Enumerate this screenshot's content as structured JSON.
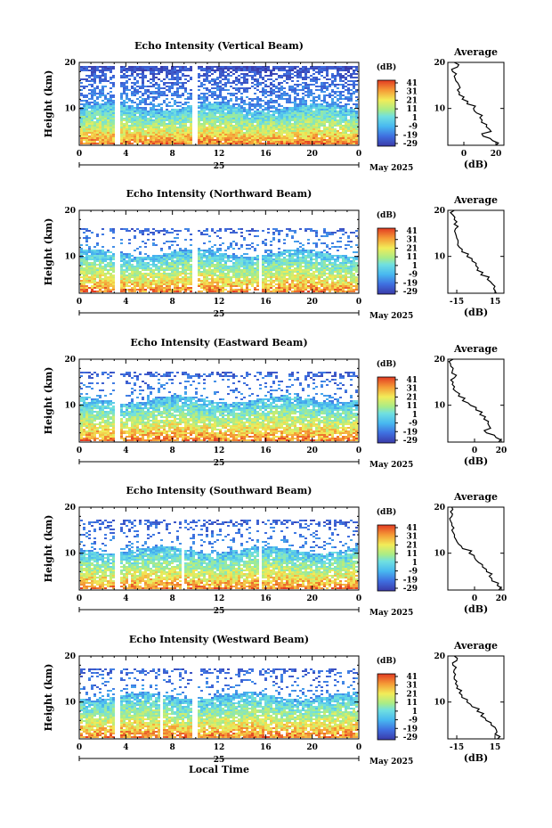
{
  "chart_data": [
    {
      "type": "heatmap",
      "title": "Echo Intensity (Vertical Beam)",
      "ylabel": "Height (km)",
      "xlim": [
        0,
        24
      ],
      "ylim": [
        2,
        20
      ],
      "x_ticks": [
        "0",
        "4",
        "8",
        "12",
        "16",
        "20",
        "0"
      ],
      "y_ticks": [
        "20",
        "10"
      ],
      "day_label": "25",
      "month_label": "May 2025",
      "colorbar": {
        "unit": "(dB)",
        "ticks": [
          "41",
          "31",
          "21",
          "11",
          "1",
          "-9",
          "-19",
          "-29"
        ]
      },
      "echo_top_km": 19.5,
      "echo_core_top_km": 10.5,
      "gap_hours": [
        3.2,
        9.8
      ],
      "average": {
        "title": "Average",
        "xlabel": "(dB)",
        "x_ticks": [
          "0",
          "20"
        ],
        "xlim": [
          -10,
          25
        ],
        "y_ticks": [
          "20",
          "10"
        ],
        "height_km": [
          2,
          3,
          4,
          5,
          6,
          7,
          8,
          9,
          10,
          11,
          12,
          13,
          14,
          15,
          16,
          17,
          18,
          19,
          20
        ],
        "db": [
          20,
          18,
          12,
          17,
          14,
          11,
          10,
          8,
          6,
          2,
          -1,
          -3,
          -4,
          -3,
          -5,
          -6,
          -7,
          -4,
          -6
        ]
      }
    },
    {
      "type": "heatmap",
      "title": "Echo Intensity (Northward Beam)",
      "ylabel": "Height (km)",
      "xlim": [
        0,
        24
      ],
      "ylim": [
        2,
        20
      ],
      "x_ticks": [
        "0",
        "4",
        "8",
        "12",
        "16",
        "20",
        "0"
      ],
      "y_ticks": [
        "20",
        "10"
      ],
      "day_label": "25",
      "month_label": "May 2025",
      "colorbar": {
        "unit": "(dB)",
        "ticks": [
          "41",
          "31",
          "21",
          "11",
          "1",
          "-9",
          "-19",
          "-29"
        ]
      },
      "echo_top_km": 16.5,
      "echo_core_top_km": 11.0,
      "gap_hours": [
        3.2,
        9.8,
        15.5
      ],
      "average": {
        "title": "Average",
        "xlabel": "(dB)",
        "x_ticks": [
          "-15",
          "15"
        ],
        "xlim": [
          -22,
          22
        ],
        "y_ticks": [
          "20",
          "10"
        ],
        "height_km": [
          2,
          3,
          4,
          5,
          6,
          7,
          8,
          9,
          10,
          11,
          12,
          13,
          14,
          15,
          16,
          17,
          18,
          19,
          20
        ],
        "db": [
          16,
          14,
          13,
          9,
          4,
          1,
          0,
          -3,
          -7,
          -11,
          -13,
          -14,
          -15,
          -16,
          -16,
          -17,
          -17,
          -18,
          -17
        ]
      }
    },
    {
      "type": "heatmap",
      "title": "Echo Intensity (Eastward Beam)",
      "ylabel": "Height (km)",
      "xlim": [
        0,
        24
      ],
      "ylim": [
        2,
        20
      ],
      "x_ticks": [
        "0",
        "4",
        "8",
        "12",
        "16",
        "20",
        "0"
      ],
      "y_ticks": [
        "20",
        "10"
      ],
      "day_label": "25",
      "month_label": "May 2025",
      "colorbar": {
        "unit": "(dB)",
        "ticks": [
          "41",
          "31",
          "21",
          "11",
          "1",
          "-9",
          "-19",
          "-29"
        ]
      },
      "echo_top_km": 17.5,
      "echo_core_top_km": 11.5,
      "gap_hours": [
        3.2
      ],
      "average": {
        "title": "Average",
        "xlabel": "(dB)",
        "x_ticks": [
          "0",
          "20"
        ],
        "xlim": [
          -20,
          22
        ],
        "y_ticks": [
          "20",
          "10"
        ],
        "height_km": [
          2,
          3,
          4,
          5,
          6,
          7,
          8,
          9,
          10,
          11,
          12,
          13,
          14,
          15,
          16,
          17,
          18,
          19,
          20
        ],
        "db": [
          18,
          16,
          9,
          12,
          10,
          7,
          4,
          1,
          -3,
          -9,
          -12,
          -14,
          -15,
          -16,
          -15,
          -17,
          -16,
          -18,
          -16
        ]
      }
    },
    {
      "type": "heatmap",
      "title": "Echo Intensity (Southward Beam)",
      "ylabel": "Height (km)",
      "xlim": [
        0,
        24
      ],
      "ylim": [
        2,
        20
      ],
      "x_ticks": [
        "0",
        "4",
        "8",
        "12",
        "16",
        "20",
        "0"
      ],
      "y_ticks": [
        "20",
        "10"
      ],
      "day_label": "25",
      "month_label": "May 2025",
      "colorbar": {
        "unit": "(dB)",
        "ticks": [
          "41",
          "31",
          "21",
          "11",
          "1",
          "-9",
          "-19",
          "-29"
        ]
      },
      "echo_top_km": 17.5,
      "echo_core_top_km": 11.0,
      "gap_hours": [
        3.2,
        8.8,
        15.5
      ],
      "average": {
        "title": "Average",
        "xlabel": "(dB)",
        "x_ticks": [
          "0",
          "20"
        ],
        "xlim": [
          -20,
          22
        ],
        "y_ticks": [
          "20",
          "10"
        ],
        "height_km": [
          2,
          3,
          4,
          5,
          6,
          7,
          8,
          9,
          10,
          11,
          12,
          13,
          14,
          15,
          16,
          17,
          18,
          19,
          20
        ],
        "db": [
          18,
          17,
          13,
          11,
          9,
          6,
          3,
          0,
          -4,
          -9,
          -12,
          -14,
          -15,
          -17,
          -17,
          -18,
          -17,
          -18,
          -17
        ]
      }
    },
    {
      "type": "heatmap",
      "title": "Echo Intensity (Westward Beam)",
      "ylabel": "Height (km)",
      "xlim": [
        0,
        24
      ],
      "ylim": [
        2,
        20
      ],
      "x_ticks": [
        "0",
        "4",
        "8",
        "12",
        "16",
        "20",
        "0"
      ],
      "y_ticks": [
        "20",
        "10"
      ],
      "day_label": "25",
      "month_label": "May 2025",
      "xlabel": "Local Time",
      "colorbar": {
        "unit": "(dB)",
        "ticks": [
          "41",
          "31",
          "21",
          "11",
          "1",
          "-9",
          "-19",
          "-29"
        ]
      },
      "echo_top_km": 17.5,
      "echo_core_top_km": 11.5,
      "gap_hours": [
        3.2,
        7.0,
        9.8
      ],
      "average": {
        "title": "Average",
        "xlabel": "(dB)",
        "x_ticks": [
          "-15",
          "15"
        ],
        "xlim": [
          -22,
          22
        ],
        "y_ticks": [
          "20",
          "10"
        ],
        "height_km": [
          2,
          3,
          4,
          5,
          6,
          7,
          8,
          9,
          10,
          11,
          12,
          13,
          14,
          15,
          16,
          17,
          18,
          19,
          20
        ],
        "db": [
          17,
          15,
          16,
          12,
          8,
          4,
          1,
          -3,
          -7,
          -11,
          -13,
          -15,
          -16,
          -17,
          -16,
          -17,
          -18,
          -15,
          -17
        ]
      }
    }
  ]
}
